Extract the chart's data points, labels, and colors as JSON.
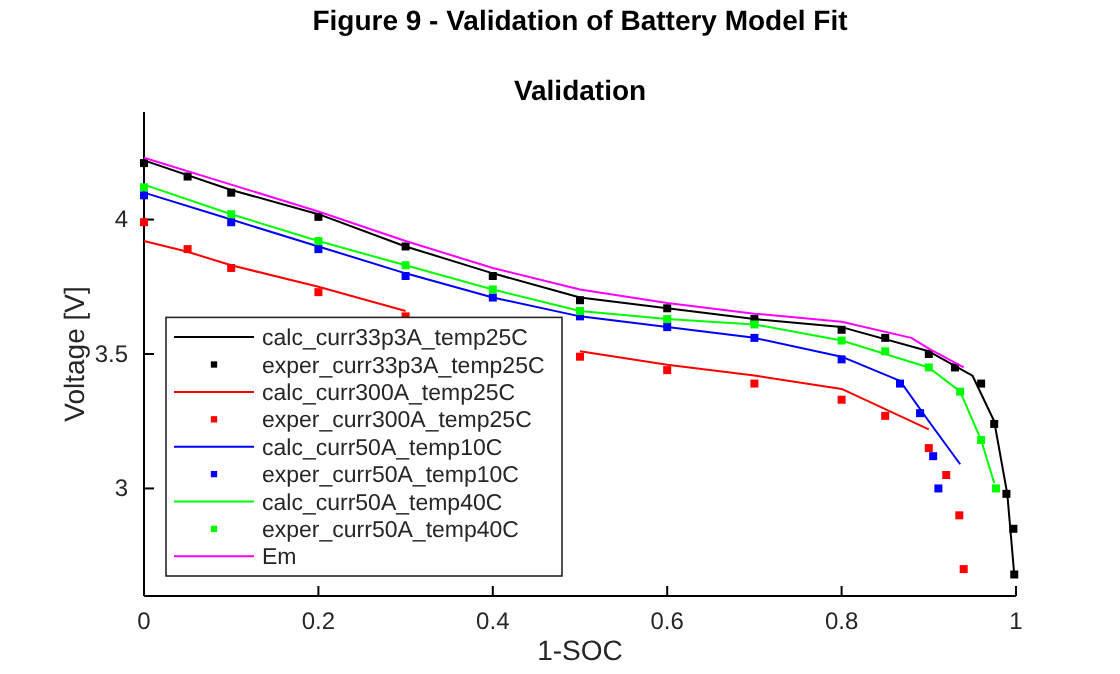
{
  "chart_data": {
    "type": "line",
    "title": "Figure 9 - Validation of Battery Model Fit",
    "subtitle": "Validation",
    "xlabel": "1-SOC",
    "ylabel": "Voltage [V]",
    "xlim": [
      0,
      1
    ],
    "ylim": [
      2.6,
      4.4
    ],
    "xticks": [
      0,
      0.2,
      0.4,
      0.6,
      0.8,
      1
    ],
    "yticks": [
      3,
      3.5,
      4
    ],
    "grid": false,
    "legend": "bottom left",
    "series": [
      {
        "name": "calc_curr33p3A_temp25C",
        "type": "line",
        "color": "#000000",
        "x": [
          0,
          0.1,
          0.2,
          0.3,
          0.4,
          0.5,
          0.6,
          0.7,
          0.8,
          0.9,
          0.95,
          0.975,
          0.99,
          0.998
        ],
        "values": [
          4.22,
          4.11,
          4.02,
          3.9,
          3.8,
          3.71,
          3.67,
          3.63,
          3.6,
          3.51,
          3.42,
          3.25,
          2.98,
          2.68
        ]
      },
      {
        "name": "exper_curr33p3A_temp25C",
        "type": "scatter",
        "marker": "square",
        "color": "#000000",
        "x": [
          0,
          0.05,
          0.1,
          0.2,
          0.3,
          0.4,
          0.5,
          0.6,
          0.7,
          0.8,
          0.85,
          0.9,
          0.93,
          0.96,
          0.975,
          0.989,
          0.997,
          0.998
        ],
        "values": [
          4.21,
          4.16,
          4.1,
          4.01,
          3.9,
          3.79,
          3.7,
          3.67,
          3.63,
          3.59,
          3.56,
          3.5,
          3.45,
          3.39,
          3.24,
          2.98,
          2.85,
          2.68
        ]
      },
      {
        "name": "calc_curr300A_temp25C",
        "type": "line",
        "color": "#ff0000",
        "x": [
          0,
          0.05,
          0.1,
          0.2,
          0.3,
          0.4,
          0.5,
          0.6,
          0.7,
          0.8,
          0.9
        ],
        "values": [
          3.92,
          3.88,
          3.83,
          3.75,
          3.66,
          null,
          3.51,
          3.46,
          3.42,
          3.37,
          3.22
        ]
      },
      {
        "name": "exper_curr300A_temp25C",
        "type": "scatter",
        "marker": "square",
        "color": "#ff0000",
        "x": [
          0,
          0.05,
          0.1,
          0.2,
          0.3,
          0.4,
          0.5,
          0.6,
          0.7,
          0.8,
          0.85,
          0.9,
          0.92,
          0.935,
          0.94
        ],
        "values": [
          3.99,
          3.89,
          3.82,
          3.73,
          3.64,
          null,
          3.49,
          3.44,
          3.39,
          3.33,
          3.27,
          3.15,
          3.05,
          2.9,
          2.7
        ]
      },
      {
        "name": "calc_curr50A_temp10C",
        "type": "line",
        "color": "#0000ff",
        "x": [
          0,
          0.1,
          0.2,
          0.3,
          0.4,
          0.5,
          0.6,
          0.7,
          0.8,
          0.867,
          0.9,
          0.936
        ],
        "values": [
          4.1,
          4.0,
          3.9,
          3.8,
          3.71,
          3.64,
          3.6,
          3.56,
          3.49,
          3.4,
          3.25,
          3.09
        ]
      },
      {
        "name": "exper_curr50A_temp10C",
        "type": "scatter",
        "marker": "square",
        "color": "#0000ff",
        "x": [
          0,
          0.1,
          0.2,
          0.3,
          0.4,
          0.5,
          0.6,
          0.7,
          0.8,
          0.867,
          0.89,
          0.905,
          0.911
        ],
        "values": [
          4.09,
          3.99,
          3.89,
          3.79,
          3.71,
          3.64,
          3.6,
          3.56,
          3.48,
          3.39,
          3.28,
          3.12,
          3.0
        ]
      },
      {
        "name": "calc_curr50A_temp40C",
        "type": "line",
        "color": "#00ff00",
        "x": [
          0,
          0.1,
          0.2,
          0.3,
          0.4,
          0.5,
          0.6,
          0.7,
          0.8,
          0.9,
          0.936,
          0.96,
          0.975
        ],
        "values": [
          4.13,
          4.02,
          3.92,
          3.83,
          3.74,
          3.66,
          3.63,
          3.61,
          3.55,
          3.45,
          3.36,
          3.18,
          3.02
        ]
      },
      {
        "name": "exper_curr50A_temp40C",
        "type": "scatter",
        "marker": "square",
        "color": "#00ff00",
        "x": [
          0,
          0.1,
          0.2,
          0.3,
          0.4,
          0.5,
          0.6,
          0.7,
          0.8,
          0.85,
          0.9,
          0.936,
          0.96,
          0.977
        ],
        "values": [
          4.12,
          4.02,
          3.92,
          3.83,
          3.74,
          3.66,
          3.63,
          3.61,
          3.55,
          3.51,
          3.45,
          3.36,
          3.18,
          3.0
        ]
      },
      {
        "name": "Em",
        "type": "line",
        "color": "#ff00ff",
        "x": [
          0,
          0.1,
          0.2,
          0.3,
          0.4,
          0.5,
          0.6,
          0.7,
          0.8,
          0.88,
          0.9,
          0.94
        ],
        "values": [
          4.23,
          4.13,
          4.03,
          3.92,
          3.82,
          3.74,
          3.69,
          3.65,
          3.62,
          3.56,
          3.52,
          3.45
        ]
      }
    ]
  }
}
